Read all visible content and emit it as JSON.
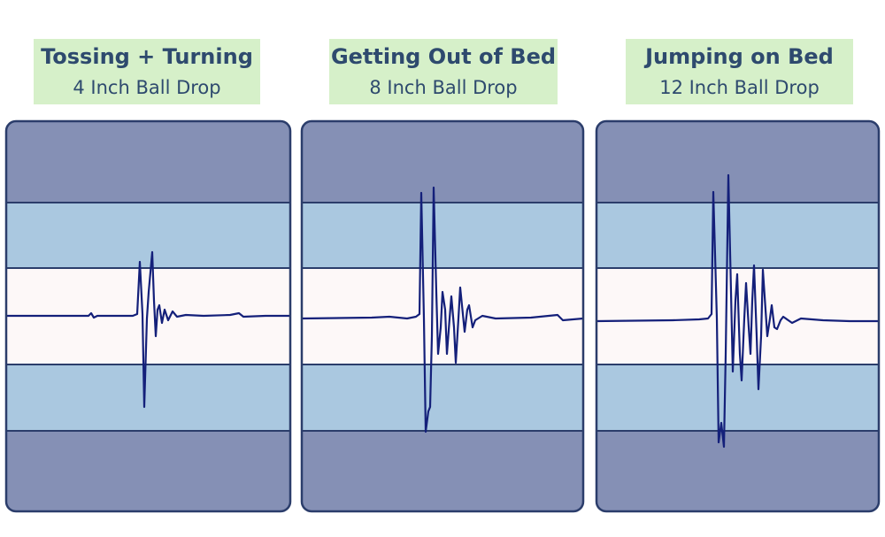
{
  "panels": [
    {
      "title": "Tossing + Turning",
      "subtitle": "4 Inch Ball Drop"
    },
    {
      "title": "Getting Out of Bed",
      "subtitle": "8 Inch Ball Drop"
    },
    {
      "title": "Jumping on Bed",
      "subtitle": "12 Inch Ball Drop"
    }
  ]
}
